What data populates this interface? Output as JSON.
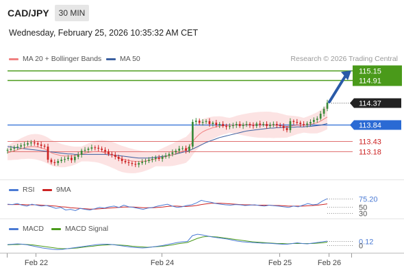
{
  "header": {
    "pair": "CAD/JPY",
    "timeframe": "30 MIN",
    "datetime": "Wednesday, February 25, 2026 10:35:32 AM CET",
    "credit": "Research © 2026 Trading Central"
  },
  "legend": {
    "ma20": "MA 20 + Bollinger Bands",
    "ma50": "MA 50",
    "rsi": "RSI",
    "rsi_ma": "9MA",
    "macd": "MACD",
    "macd_signal": "MACD Signal"
  },
  "colors": {
    "ma20": "#f08080",
    "ma50": "#3a5fa0",
    "bollinger_fill": "#fbdede",
    "candle_up": "#3a8a3a",
    "candle_down": "#cc2222",
    "green_level": "#4a9a1a",
    "blue_level": "#2a6ad4",
    "red_level": "#e07070",
    "arrow": "#2a5aa8",
    "rsi": "#4a7ad4",
    "rsi_ma": "#cc2222",
    "macd": "#4a7ad4",
    "macd_signal": "#4a9a1a",
    "current_price_bg": "#222222"
  },
  "chart_data": [
    {
      "type": "candlestick",
      "name": "price",
      "x_labels": [
        "Feb 22",
        "Feb 24",
        "Feb 25",
        "Feb 26"
      ],
      "ylim": [
        112.5,
        115.3
      ],
      "levels": [
        {
          "label": "115.15",
          "value": 115.15,
          "style": "target-green"
        },
        {
          "label": "114.91",
          "value": 114.91,
          "style": "target-green"
        },
        {
          "label": "114.37",
          "value": 114.37,
          "style": "current-price"
        },
        {
          "label": "113.84",
          "value": 113.84,
          "style": "pivot-blue"
        },
        {
          "label": "113.43",
          "value": 113.43,
          "style": "support-red"
        },
        {
          "label": "113.18",
          "value": 113.18,
          "style": "support-red"
        }
      ],
      "forecast_arrow": {
        "from": 114.37,
        "to": 115.15
      },
      "closes": [
        113.22,
        113.25,
        113.28,
        113.3,
        113.33,
        113.35,
        113.38,
        113.4,
        113.38,
        113.35,
        113.32,
        113.3,
        112.98,
        112.92,
        112.9,
        112.95,
        112.98,
        113.0,
        113.03,
        112.97,
        113.05,
        113.1,
        113.2,
        113.22,
        113.25,
        113.28,
        113.27,
        113.25,
        113.22,
        113.18,
        113.12,
        113.1,
        113.05,
        113.0,
        112.95,
        112.92,
        112.9,
        112.88,
        112.86,
        112.9,
        112.93,
        112.95,
        112.98,
        113.0,
        113.03,
        113.0,
        113.05,
        113.08,
        113.12,
        113.16,
        113.2,
        113.25,
        113.26,
        113.2,
        113.3,
        113.9,
        113.93,
        113.88,
        113.9,
        113.92,
        113.85,
        113.88,
        113.82,
        113.85,
        113.8,
        113.78,
        113.8,
        113.82,
        113.85,
        113.8,
        113.83,
        113.85,
        113.82,
        113.8,
        113.86,
        113.83,
        113.85,
        113.8,
        113.83,
        113.85,
        113.82,
        113.8,
        113.75,
        113.7,
        113.92,
        113.9,
        113.88,
        113.85,
        113.83,
        113.86,
        113.9,
        113.95,
        113.98,
        114.1,
        114.22,
        114.37
      ],
      "ma20": [
        113.15,
        113.17,
        113.2,
        113.22,
        113.25,
        113.27,
        113.29,
        113.3,
        113.3,
        113.29,
        113.27,
        113.24,
        113.2,
        113.15,
        113.12,
        113.1,
        113.08,
        113.07,
        113.07,
        113.07,
        113.08,
        113.1,
        113.12,
        113.14,
        113.16,
        113.17,
        113.18,
        113.18,
        113.17,
        113.15,
        113.13,
        113.1,
        113.07,
        113.03,
        113.0,
        112.98,
        112.96,
        112.95,
        112.94,
        112.94,
        112.94,
        112.95,
        112.96,
        112.98,
        113.0,
        113.02,
        113.04,
        113.06,
        113.08,
        113.1,
        113.13,
        113.16,
        113.19,
        113.22,
        113.3,
        113.42,
        113.52,
        113.6,
        113.66,
        113.7,
        113.73,
        113.76,
        113.78,
        113.8,
        113.81,
        113.81,
        113.82,
        113.82,
        113.83,
        113.83,
        113.83,
        113.83,
        113.83,
        113.83,
        113.83,
        113.83,
        113.83,
        113.83,
        113.83,
        113.82,
        113.82,
        113.81,
        113.8,
        113.79,
        113.8,
        113.81,
        113.82,
        113.82,
        113.82,
        113.83,
        113.84,
        113.86,
        113.88,
        113.92,
        113.97,
        114.02
      ],
      "ma50": [
        113.3,
        113.29,
        113.28,
        113.27,
        113.26,
        113.25,
        113.24,
        113.23,
        113.22,
        113.21,
        113.2,
        113.19,
        113.18,
        113.17,
        113.16,
        113.15,
        113.14,
        113.13,
        113.12,
        113.12,
        113.11,
        113.11,
        113.11,
        113.11,
        113.11,
        113.11,
        113.11,
        113.11,
        113.11,
        113.11,
        113.1,
        113.1,
        113.09,
        113.08,
        113.07,
        113.06,
        113.05,
        113.04,
        113.03,
        113.02,
        113.02,
        113.02,
        113.02,
        113.03,
        113.04,
        113.05,
        113.06,
        113.07,
        113.08,
        113.1,
        113.12,
        113.14,
        113.16,
        113.18,
        113.2,
        113.24,
        113.28,
        113.32,
        113.36,
        113.4,
        113.43,
        113.46,
        113.49,
        113.52,
        113.54,
        113.56,
        113.58,
        113.6,
        113.62,
        113.64,
        113.66,
        113.68,
        113.69,
        113.7,
        113.71,
        113.72,
        113.73,
        113.74,
        113.75,
        113.75,
        113.76,
        113.76,
        113.77,
        113.77,
        113.77,
        113.77,
        113.78,
        113.78,
        113.78,
        113.79,
        113.79,
        113.8,
        113.81,
        113.82,
        113.84,
        113.86
      ]
    },
    {
      "type": "line",
      "name": "RSI",
      "ylim": [
        20,
        90
      ],
      "levels": [
        {
          "label": "75.20",
          "value": 75.2
        },
        {
          "label": "50",
          "value": 50
        },
        {
          "label": "30",
          "value": 30
        }
      ],
      "series": [
        {
          "name": "RSI",
          "values": [
            58,
            57,
            60,
            55,
            52,
            58,
            55,
            52,
            54,
            50,
            45,
            48,
            40,
            42,
            38,
            45,
            42,
            40,
            44,
            48,
            46,
            50,
            52,
            48,
            55,
            50,
            48,
            45,
            42,
            46,
            48,
            52,
            55,
            58,
            52,
            48,
            50,
            54,
            56,
            62,
            70,
            66,
            64,
            60,
            58,
            56,
            55,
            57,
            56,
            54,
            55,
            56,
            54,
            52,
            55,
            53,
            52,
            50,
            48,
            52,
            50,
            55,
            60,
            56,
            58,
            68,
            75
          ]
        },
        {
          "name": "9MA",
          "values": [
            57,
            57,
            57,
            57,
            56,
            56,
            56,
            55,
            54,
            53,
            52,
            50,
            49,
            47,
            46,
            45,
            44,
            43,
            43,
            44,
            45,
            46,
            47,
            48,
            49,
            49,
            49,
            48,
            47,
            47,
            47,
            48,
            49,
            51,
            52,
            52,
            51,
            51,
            52,
            54,
            57,
            59,
            61,
            61,
            61,
            60,
            59,
            58,
            57,
            56,
            56,
            55,
            55,
            55,
            55,
            54,
            54,
            53,
            52,
            52,
            52,
            52,
            53,
            54,
            55,
            57,
            59
          ]
        }
      ]
    },
    {
      "type": "line",
      "name": "MACD",
      "levels": [
        {
          "label": "0.12",
          "value": 0.12
        },
        {
          "label": "0",
          "value": 0
        }
      ],
      "series": [
        {
          "name": "MACD",
          "values": [
            0.02,
            0.03,
            0.04,
            0.03,
            0.01,
            -0.02,
            -0.05,
            -0.08,
            -0.1,
            -0.12,
            -0.13,
            -0.12,
            -0.1,
            -0.08,
            -0.06,
            -0.04,
            -0.02,
            0.0,
            0.02,
            0.03,
            0.03,
            0.02,
            0.0,
            -0.02,
            -0.04,
            -0.06,
            -0.07,
            -0.08,
            -0.07,
            -0.05,
            -0.03,
            -0.01,
            0.02,
            0.05,
            0.08,
            0.1,
            0.11,
            0.28,
            0.32,
            0.3,
            0.27,
            0.24,
            0.22,
            0.2,
            0.18,
            0.15,
            0.12,
            0.1,
            0.09,
            0.08,
            0.07,
            0.06,
            0.06,
            0.05,
            0.04,
            0.03,
            0.03,
            0.05,
            0.07,
            0.05,
            0.04,
            0.06,
            0.08,
            0.1,
            0.12
          ]
        },
        {
          "name": "MACD Signal",
          "values": [
            0.01,
            0.02,
            0.02,
            0.03,
            0.02,
            0.01,
            -0.01,
            -0.03,
            -0.05,
            -0.07,
            -0.09,
            -0.1,
            -0.1,
            -0.09,
            -0.08,
            -0.06,
            -0.04,
            -0.03,
            -0.01,
            0.0,
            0.01,
            0.02,
            0.01,
            0.0,
            -0.01,
            -0.03,
            -0.04,
            -0.05,
            -0.06,
            -0.05,
            -0.04,
            -0.03,
            -0.01,
            0.01,
            0.04,
            0.06,
            0.08,
            0.14,
            0.2,
            0.24,
            0.26,
            0.25,
            0.24,
            0.22,
            0.2,
            0.18,
            0.16,
            0.14,
            0.12,
            0.1,
            0.09,
            0.08,
            0.07,
            0.06,
            0.05,
            0.05,
            0.04,
            0.05,
            0.05,
            0.05,
            0.05,
            0.05,
            0.06,
            0.07,
            0.09
          ]
        }
      ]
    }
  ]
}
